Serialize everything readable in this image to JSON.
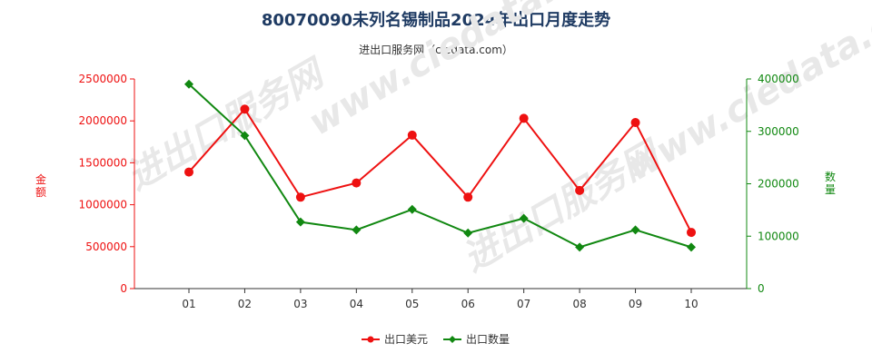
{
  "header": {
    "title": "80070090未列名锡制品2024年出口月度走势",
    "subtitle": "进出口服务网（ciedata.com）"
  },
  "colors": {
    "value_series": "#ee1111",
    "qty_series": "#118811"
  },
  "chart_data": {
    "type": "line",
    "categories": [
      "01",
      "02",
      "03",
      "04",
      "05",
      "06",
      "07",
      "08",
      "09",
      "10"
    ],
    "left_axis": {
      "label": "金额",
      "ticks": [
        "0",
        "500000",
        "1000000",
        "1500000",
        "2000000",
        "2500000"
      ],
      "range": [
        0,
        2500000
      ]
    },
    "right_axis": {
      "label": "数量",
      "ticks": [
        "0",
        "100000",
        "200000",
        "300000",
        "400000"
      ],
      "range": [
        0,
        400000
      ]
    },
    "series": [
      {
        "name": "出口美元",
        "axis": "left",
        "values": [
          1390000,
          2140000,
          1090000,
          1260000,
          1830000,
          1090000,
          2030000,
          1170000,
          1980000,
          670000
        ]
      },
      {
        "name": "出口数量",
        "axis": "right",
        "values": [
          390000,
          292000,
          127000,
          112000,
          151000,
          106000,
          134000,
          79000,
          112000,
          79000
        ]
      }
    ],
    "legend_position": "bottom",
    "grid": false
  }
}
